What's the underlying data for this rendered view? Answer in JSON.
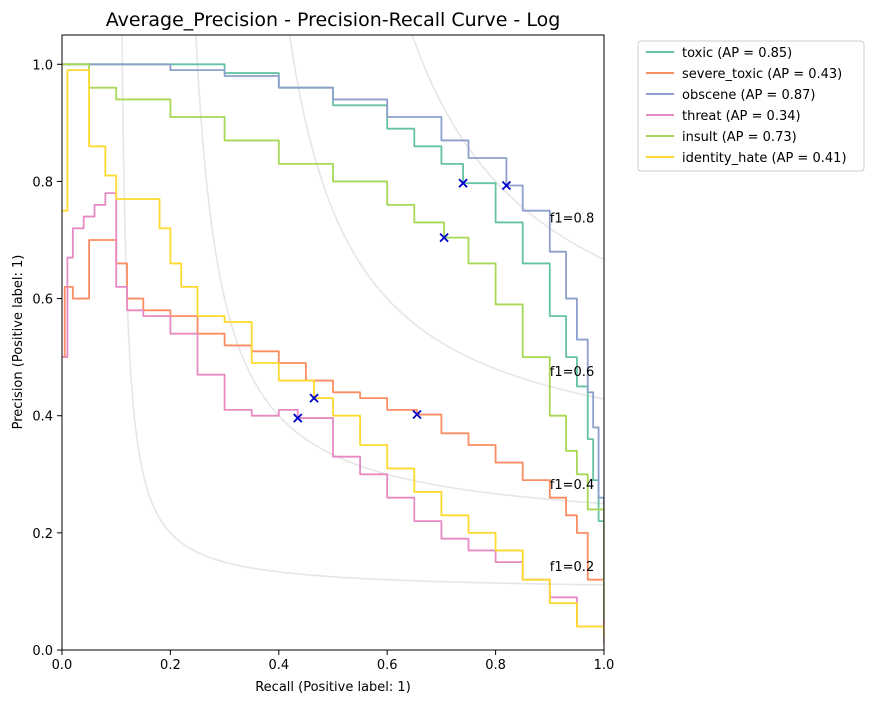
{
  "chart_data": {
    "type": "line",
    "title": "Average_Precision - Precision-Recall Curve - Log",
    "xlabel": "Recall (Positive label: 1)",
    "ylabel": "Precision (Positive label: 1)",
    "xlim": [
      0.0,
      1.0
    ],
    "ylim": [
      0.0,
      1.05
    ],
    "xticks": [
      "0.0",
      "0.2",
      "0.4",
      "0.6",
      "0.8",
      "1.0"
    ],
    "yticks": [
      "0.0",
      "0.2",
      "0.4",
      "0.6",
      "0.8",
      "1.0"
    ],
    "grid": false,
    "legend_position": "outside upper-right",
    "iso_f1": [
      {
        "f1": 0.2,
        "label": "f1=0.2",
        "label_at": [
          0.9,
          0.135
        ]
      },
      {
        "f1": 0.4,
        "label": "f1=0.4",
        "label_at": [
          0.9,
          0.275
        ]
      },
      {
        "f1": 0.6,
        "label": "f1=0.6",
        "label_at": [
          0.9,
          0.468
        ]
      },
      {
        "f1": 0.8,
        "label": "f1=0.8",
        "label_at": [
          0.9,
          0.73
        ]
      }
    ],
    "series": [
      {
        "name": "toxic (AP = 0.85)",
        "color": "#66c2a5",
        "marker": [
          0.74,
          0.797
        ],
        "points": [
          [
            0,
            1.0
          ],
          [
            0.1,
            1.0
          ],
          [
            0.2,
            1.0
          ],
          [
            0.3,
            0.985
          ],
          [
            0.4,
            0.96
          ],
          [
            0.5,
            0.93
          ],
          [
            0.6,
            0.89
          ],
          [
            0.65,
            0.86
          ],
          [
            0.7,
            0.83
          ],
          [
            0.74,
            0.797
          ],
          [
            0.8,
            0.73
          ],
          [
            0.85,
            0.66
          ],
          [
            0.9,
            0.57
          ],
          [
            0.93,
            0.5
          ],
          [
            0.95,
            0.45
          ],
          [
            0.97,
            0.36
          ],
          [
            0.98,
            0.29
          ],
          [
            0.99,
            0.22
          ],
          [
            1.0,
            0.1
          ]
        ]
      },
      {
        "name": "severe_toxic (AP = 0.43)",
        "color": "#fc8d62",
        "marker": [
          0.655,
          0.402
        ],
        "points": [
          [
            0,
            0.5
          ],
          [
            0.005,
            0.62
          ],
          [
            0.02,
            0.6
          ],
          [
            0.05,
            0.7
          ],
          [
            0.08,
            0.7
          ],
          [
            0.1,
            0.66
          ],
          [
            0.12,
            0.6
          ],
          [
            0.15,
            0.58
          ],
          [
            0.2,
            0.57
          ],
          [
            0.25,
            0.54
          ],
          [
            0.3,
            0.52
          ],
          [
            0.35,
            0.51
          ],
          [
            0.4,
            0.49
          ],
          [
            0.45,
            0.46
          ],
          [
            0.5,
            0.44
          ],
          [
            0.55,
            0.43
          ],
          [
            0.6,
            0.41
          ],
          [
            0.655,
            0.402
          ],
          [
            0.7,
            0.37
          ],
          [
            0.75,
            0.35
          ],
          [
            0.8,
            0.32
          ],
          [
            0.85,
            0.29
          ],
          [
            0.9,
            0.26
          ],
          [
            0.93,
            0.23
          ],
          [
            0.95,
            0.2
          ],
          [
            0.97,
            0.12
          ],
          [
            1.0,
            0.03
          ]
        ]
      },
      {
        "name": "obscene (AP = 0.87)",
        "color": "#8da0cb",
        "marker": [
          0.82,
          0.793
        ],
        "points": [
          [
            0,
            1.0
          ],
          [
            0.1,
            1.0
          ],
          [
            0.2,
            0.99
          ],
          [
            0.3,
            0.98
          ],
          [
            0.4,
            0.96
          ],
          [
            0.5,
            0.94
          ],
          [
            0.6,
            0.91
          ],
          [
            0.7,
            0.87
          ],
          [
            0.75,
            0.84
          ],
          [
            0.82,
            0.793
          ],
          [
            0.85,
            0.75
          ],
          [
            0.9,
            0.68
          ],
          [
            0.93,
            0.6
          ],
          [
            0.95,
            0.53
          ],
          [
            0.97,
            0.44
          ],
          [
            0.98,
            0.38
          ],
          [
            0.99,
            0.26
          ],
          [
            1.0,
            0.13
          ]
        ]
      },
      {
        "name": "threat (AP = 0.34)",
        "color": "#e78ac3",
        "marker": [
          0.435,
          0.396
        ],
        "points": [
          [
            0,
            0.5
          ],
          [
            0.01,
            0.67
          ],
          [
            0.02,
            0.72
          ],
          [
            0.04,
            0.74
          ],
          [
            0.06,
            0.76
          ],
          [
            0.08,
            0.78
          ],
          [
            0.1,
            0.62
          ],
          [
            0.12,
            0.58
          ],
          [
            0.15,
            0.57
          ],
          [
            0.2,
            0.54
          ],
          [
            0.25,
            0.47
          ],
          [
            0.3,
            0.41
          ],
          [
            0.35,
            0.4
          ],
          [
            0.4,
            0.41
          ],
          [
            0.435,
            0.396
          ],
          [
            0.5,
            0.33
          ],
          [
            0.55,
            0.3
          ],
          [
            0.6,
            0.26
          ],
          [
            0.65,
            0.22
          ],
          [
            0.7,
            0.19
          ],
          [
            0.75,
            0.17
          ],
          [
            0.8,
            0.15
          ],
          [
            0.85,
            0.12
          ],
          [
            0.9,
            0.09
          ],
          [
            0.95,
            0.04
          ],
          [
            1.0,
            0.01
          ]
        ]
      },
      {
        "name": "insult (AP = 0.73)",
        "color": "#a6d854",
        "marker": [
          0.705,
          0.704
        ],
        "points": [
          [
            0,
            1.0
          ],
          [
            0.05,
            0.96
          ],
          [
            0.1,
            0.94
          ],
          [
            0.2,
            0.91
          ],
          [
            0.3,
            0.87
          ],
          [
            0.4,
            0.83
          ],
          [
            0.5,
            0.8
          ],
          [
            0.6,
            0.76
          ],
          [
            0.65,
            0.73
          ],
          [
            0.705,
            0.704
          ],
          [
            0.75,
            0.66
          ],
          [
            0.8,
            0.59
          ],
          [
            0.85,
            0.5
          ],
          [
            0.9,
            0.4
          ],
          [
            0.93,
            0.34
          ],
          [
            0.95,
            0.3
          ],
          [
            0.97,
            0.24
          ],
          [
            1.0,
            0.05
          ]
        ]
      },
      {
        "name": "identity_hate (AP = 0.41)",
        "color": "#ffd92f",
        "marker": [
          0.465,
          0.43
        ],
        "points": [
          [
            0,
            0.75
          ],
          [
            0.01,
            0.99
          ],
          [
            0.05,
            0.86
          ],
          [
            0.08,
            0.81
          ],
          [
            0.1,
            0.77
          ],
          [
            0.15,
            0.77
          ],
          [
            0.18,
            0.72
          ],
          [
            0.2,
            0.66
          ],
          [
            0.22,
            0.62
          ],
          [
            0.25,
            0.57
          ],
          [
            0.3,
            0.56
          ],
          [
            0.35,
            0.49
          ],
          [
            0.4,
            0.46
          ],
          [
            0.465,
            0.43
          ],
          [
            0.5,
            0.4
          ],
          [
            0.55,
            0.35
          ],
          [
            0.6,
            0.31
          ],
          [
            0.65,
            0.27
          ],
          [
            0.7,
            0.23
          ],
          [
            0.75,
            0.2
          ],
          [
            0.8,
            0.17
          ],
          [
            0.85,
            0.12
          ],
          [
            0.9,
            0.08
          ],
          [
            0.95,
            0.04
          ],
          [
            1.0,
            0.02
          ]
        ]
      }
    ]
  }
}
